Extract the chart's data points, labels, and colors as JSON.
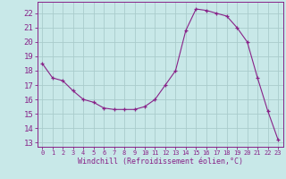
{
  "x": [
    0,
    1,
    2,
    3,
    4,
    5,
    6,
    7,
    8,
    9,
    10,
    11,
    12,
    13,
    14,
    15,
    16,
    17,
    18,
    19,
    20,
    21,
    22,
    23
  ],
  "y": [
    18.5,
    17.5,
    17.3,
    16.6,
    16.0,
    15.8,
    15.4,
    15.3,
    15.3,
    15.3,
    15.5,
    16.0,
    17.0,
    18.0,
    20.8,
    22.3,
    22.2,
    22.0,
    21.8,
    21.0,
    20.0,
    17.5,
    15.2,
    13.2
  ],
  "line_color": "#882288",
  "marker": "P",
  "bg_color": "#c8e8e8",
  "grid_color": "#aacccc",
  "ylabel_values": [
    13,
    14,
    15,
    16,
    17,
    18,
    19,
    20,
    21,
    22
  ],
  "xlabel": "Windchill (Refroidissement éolien,°C)",
  "xlim": [
    -0.5,
    23.5
  ],
  "ylim": [
    12.7,
    22.8
  ],
  "xtick_labels": [
    "0",
    "1",
    "2",
    "3",
    "4",
    "5",
    "6",
    "7",
    "8",
    "9",
    "10",
    "11",
    "12",
    "13",
    "14",
    "15",
    "16",
    "17",
    "18",
    "19",
    "20",
    "21",
    "22",
    "23"
  ],
  "title_color": "#882288",
  "axis_color": "#882288",
  "tick_color": "#882288",
  "xlabel_fontsize": 6.0,
  "ytick_fontsize": 6.5,
  "xtick_fontsize": 5.0
}
